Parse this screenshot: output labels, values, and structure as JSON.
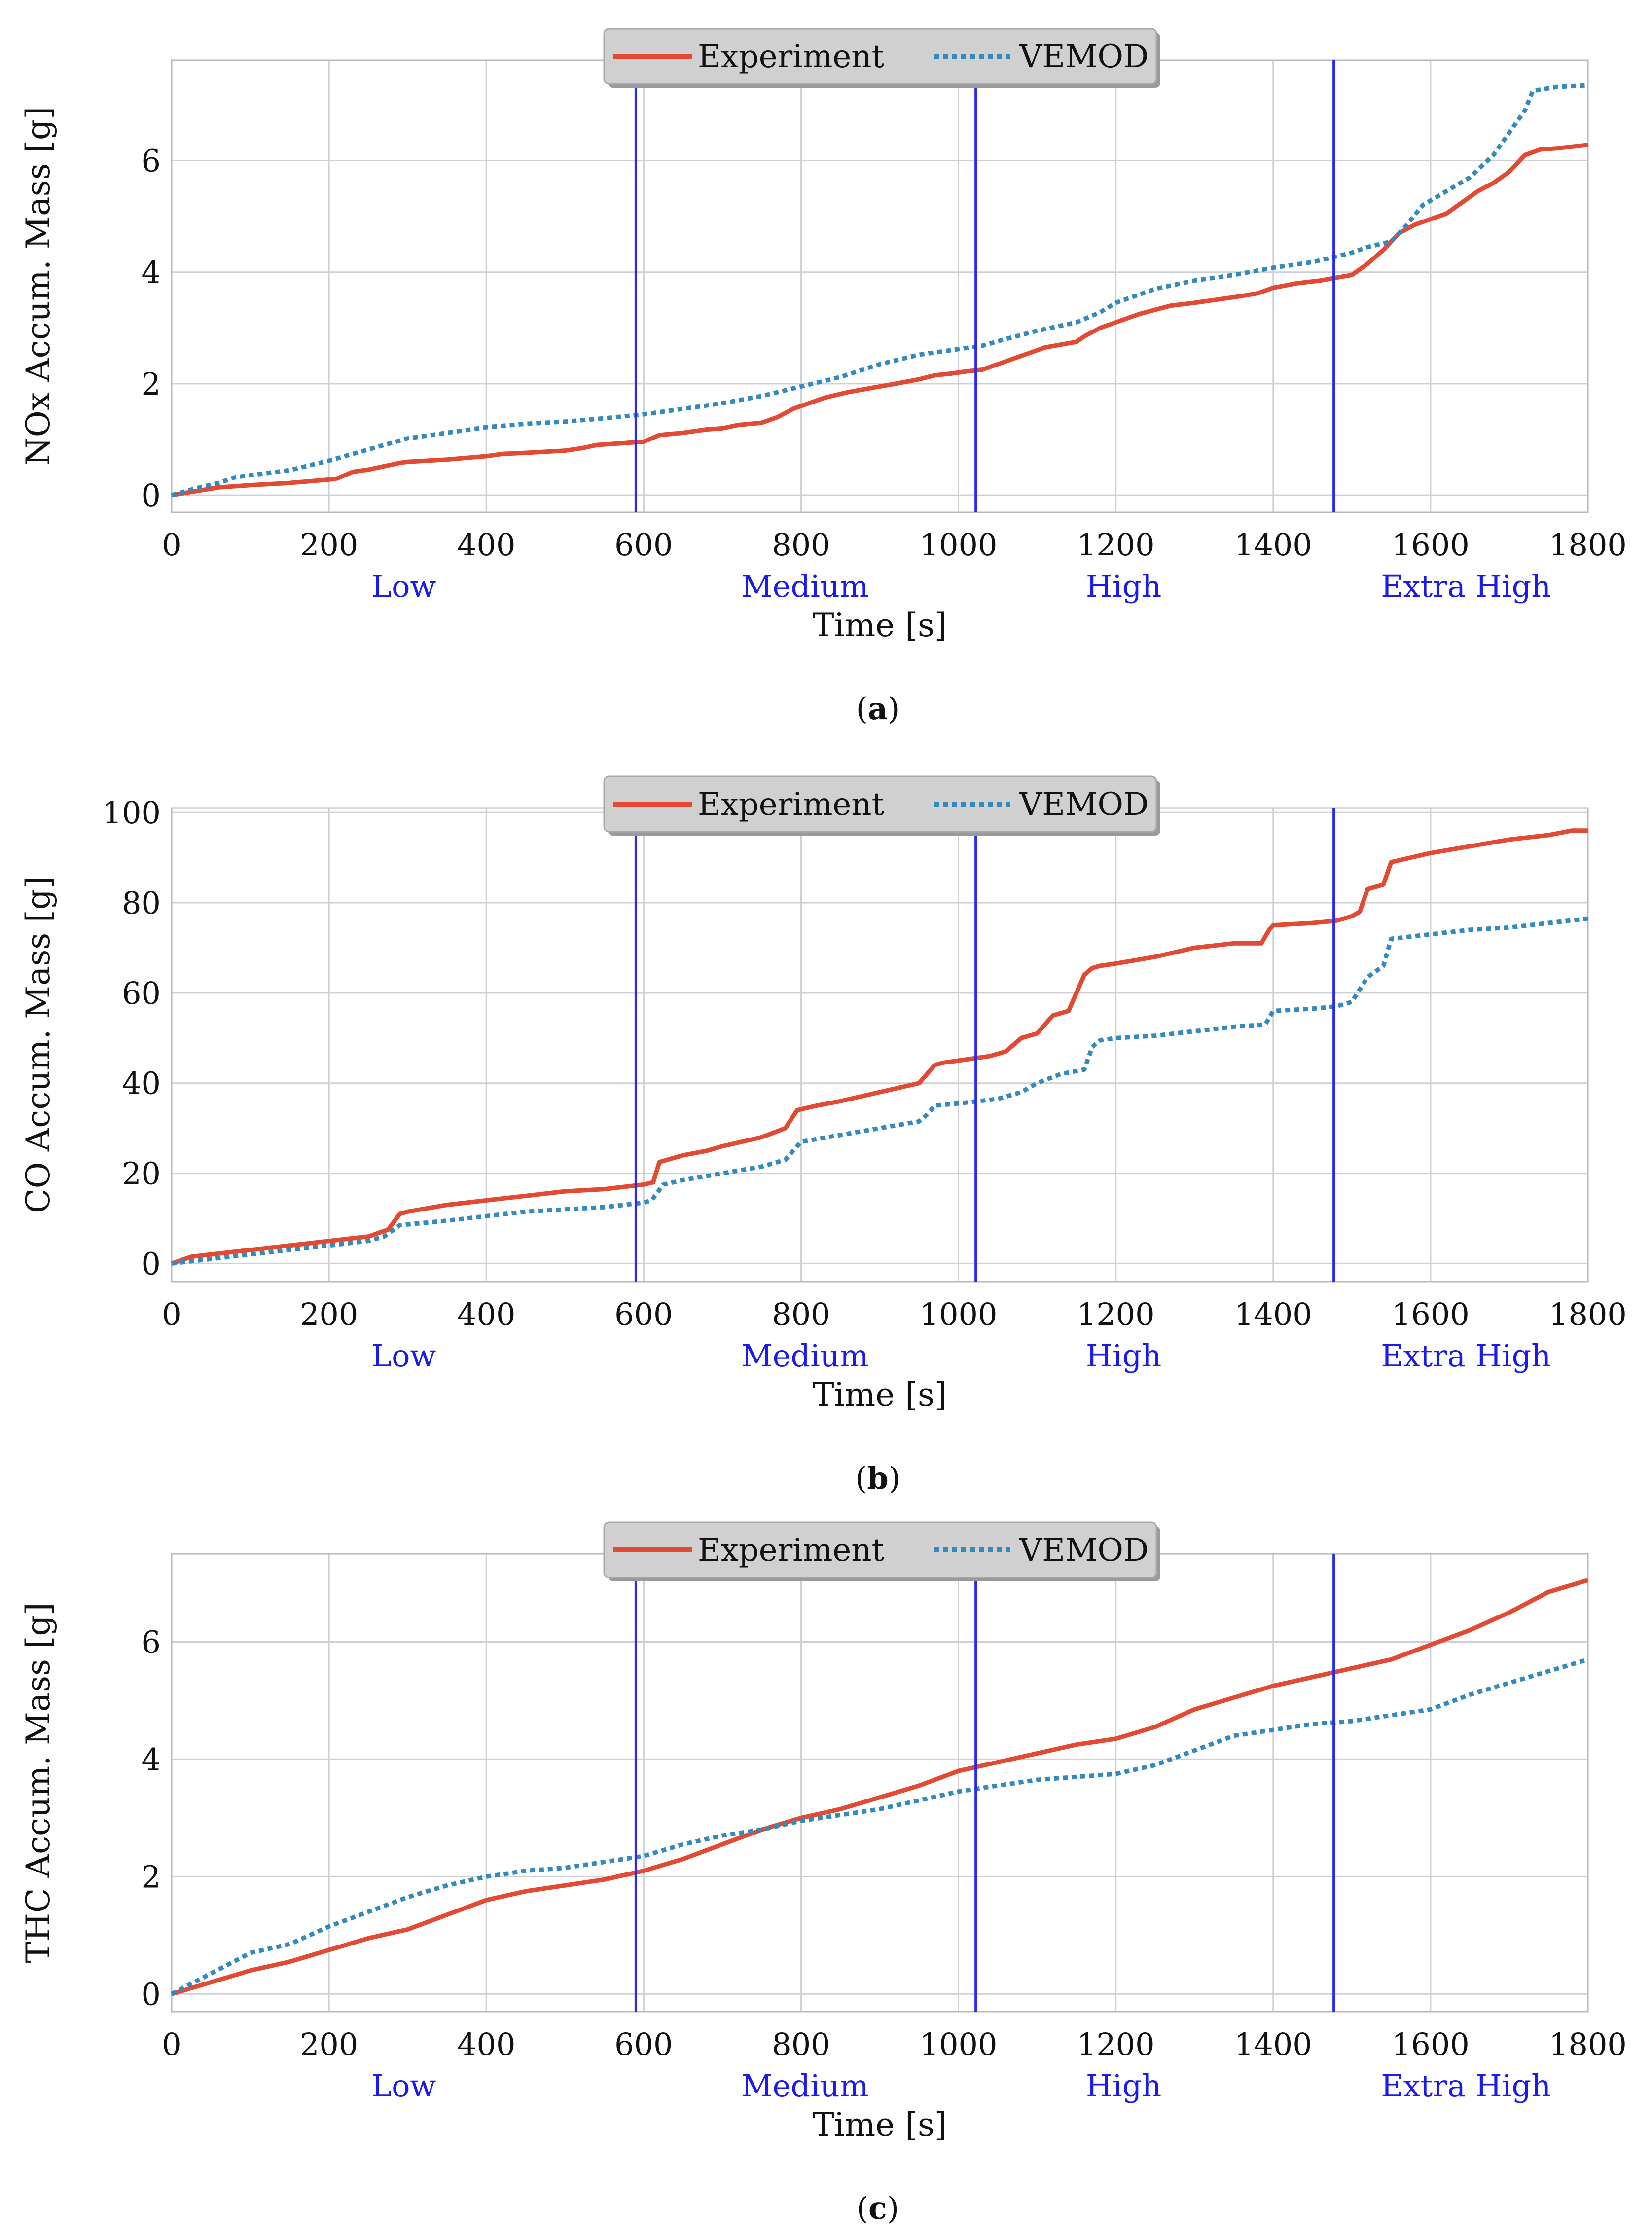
{
  "colors": {
    "experiment": "#e24a33",
    "vemod": "#348abd",
    "phase_line": "#2a2aee",
    "phase_text": "#1a1aee",
    "grid": "#cfcfd6",
    "axes": "#b8b8c0",
    "legend_bg": "#d0d0d0"
  },
  "phases": {
    "labels": [
      "Low",
      "Medium",
      "High",
      "Extra High"
    ],
    "label_x": [
      295,
      805,
      1210,
      1645
    ],
    "boundaries": [
      590,
      1022,
      1477
    ]
  },
  "chart_data": [
    {
      "type": "line",
      "caption": {
        "open": "(",
        "letter": "a",
        "close": ")"
      },
      "xlabel": "Time [s]",
      "ylabel": "NOx Accum. Mass [g]",
      "xlim": [
        0,
        1800
      ],
      "ylim": [
        -0.3,
        7.8
      ],
      "xticks": [
        0,
        200,
        400,
        600,
        800,
        1000,
        1200,
        1400,
        1600,
        1800
      ],
      "yticks": [
        0,
        2,
        4,
        6
      ],
      "legend": [
        "Experiment",
        "VEMOD"
      ],
      "series": [
        {
          "name": "Experiment",
          "x": [
            0,
            30,
            60,
            100,
            150,
            200,
            210,
            230,
            250,
            270,
            290,
            300,
            350,
            400,
            420,
            450,
            500,
            520,
            540,
            560,
            580,
            600,
            610,
            620,
            650,
            680,
            700,
            720,
            750,
            770,
            790,
            810,
            830,
            860,
            880,
            900,
            920,
            950,
            970,
            990,
            1010,
            1030,
            1050,
            1070,
            1090,
            1110,
            1130,
            1150,
            1160,
            1180,
            1200,
            1230,
            1270,
            1300,
            1350,
            1380,
            1400,
            1430,
            1460,
            1480,
            1500,
            1510,
            1520,
            1540,
            1560,
            1580,
            1600,
            1620,
            1640,
            1660,
            1680,
            1700,
            1720,
            1740,
            1760,
            1800
          ],
          "values": [
            0,
            0.07,
            0.14,
            0.18,
            0.22,
            0.28,
            0.3,
            0.42,
            0.46,
            0.52,
            0.58,
            0.6,
            0.64,
            0.7,
            0.74,
            0.76,
            0.8,
            0.84,
            0.9,
            0.92,
            0.94,
            0.96,
            1.02,
            1.08,
            1.12,
            1.18,
            1.2,
            1.26,
            1.3,
            1.4,
            1.55,
            1.65,
            1.75,
            1.85,
            1.9,
            1.95,
            2.0,
            2.08,
            2.15,
            2.18,
            2.22,
            2.25,
            2.35,
            2.45,
            2.55,
            2.65,
            2.7,
            2.75,
            2.85,
            3.0,
            3.1,
            3.25,
            3.4,
            3.45,
            3.55,
            3.62,
            3.72,
            3.8,
            3.85,
            3.9,
            3.95,
            4.05,
            4.15,
            4.4,
            4.7,
            4.85,
            4.95,
            5.05,
            5.25,
            5.45,
            5.6,
            5.8,
            6.1,
            6.2,
            6.22,
            6.28
          ]
        },
        {
          "name": "VEMOD",
          "x": [
            0,
            30,
            60,
            80,
            100,
            150,
            200,
            250,
            300,
            350,
            400,
            450,
            500,
            550,
            600,
            650,
            700,
            750,
            800,
            850,
            900,
            950,
            1000,
            1030,
            1060,
            1100,
            1150,
            1180,
            1200,
            1250,
            1300,
            1350,
            1400,
            1450,
            1480,
            1500,
            1520,
            1550,
            1570,
            1590,
            1620,
            1650,
            1680,
            1700,
            1720,
            1730,
            1760,
            1800
          ],
          "values": [
            0,
            0.12,
            0.22,
            0.32,
            0.36,
            0.45,
            0.62,
            0.82,
            1.02,
            1.12,
            1.22,
            1.28,
            1.32,
            1.38,
            1.45,
            1.55,
            1.65,
            1.78,
            1.95,
            2.12,
            2.35,
            2.52,
            2.62,
            2.68,
            2.8,
            2.95,
            3.1,
            3.28,
            3.45,
            3.7,
            3.85,
            3.95,
            4.08,
            4.18,
            4.28,
            4.35,
            4.45,
            4.55,
            4.85,
            5.2,
            5.45,
            5.7,
            6.1,
            6.5,
            6.9,
            7.25,
            7.32,
            7.35
          ]
        }
      ]
    },
    {
      "type": "line",
      "caption": {
        "open": "(",
        "letter": "b",
        "close": ")"
      },
      "xlabel": "Time [s]",
      "ylabel": "CO Accum. Mass [g]",
      "xlim": [
        0,
        1800
      ],
      "ylim": [
        -4,
        101
      ],
      "xticks": [
        0,
        200,
        400,
        600,
        800,
        1000,
        1200,
        1400,
        1600,
        1800
      ],
      "yticks": [
        0,
        20,
        40,
        60,
        80,
        100
      ],
      "legend": [
        "Experiment",
        "VEMOD"
      ],
      "series": [
        {
          "name": "Experiment",
          "x": [
            0,
            25,
            50,
            100,
            150,
            200,
            250,
            275,
            290,
            300,
            350,
            400,
            450,
            500,
            550,
            600,
            612,
            620,
            650,
            680,
            700,
            750,
            780,
            795,
            820,
            850,
            900,
            950,
            970,
            980,
            1000,
            1020,
            1040,
            1060,
            1080,
            1100,
            1120,
            1140,
            1160,
            1170,
            1180,
            1200,
            1250,
            1300,
            1350,
            1385,
            1395,
            1400,
            1450,
            1480,
            1500,
            1510,
            1520,
            1540,
            1550,
            1600,
            1650,
            1700,
            1750,
            1780,
            1800
          ],
          "values": [
            0,
            1.5,
            2,
            3,
            4,
            5,
            6,
            7.5,
            11,
            11.5,
            13,
            14,
            15,
            16,
            16.5,
            17.5,
            18,
            22.5,
            24,
            25,
            26,
            28,
            30,
            34,
            35,
            36,
            38,
            40,
            44,
            44.5,
            45,
            45.5,
            46,
            47,
            50,
            51,
            55,
            56,
            64,
            65.5,
            66,
            66.5,
            68,
            70,
            71,
            71,
            74,
            75,
            75.5,
            76,
            77,
            78,
            83,
            84,
            89,
            91,
            92.5,
            94,
            95,
            96,
            96
          ]
        },
        {
          "name": "VEMOD",
          "x": [
            0,
            50,
            100,
            150,
            200,
            250,
            270,
            290,
            350,
            400,
            450,
            500,
            550,
            600,
            610,
            625,
            650,
            700,
            750,
            780,
            800,
            850,
            900,
            950,
            960,
            970,
            1000,
            1050,
            1080,
            1100,
            1130,
            1160,
            1170,
            1180,
            1200,
            1250,
            1300,
            1350,
            1390,
            1400,
            1450,
            1480,
            1500,
            1520,
            1540,
            1550,
            1600,
            1650,
            1700,
            1750,
            1800
          ],
          "values": [
            0,
            1,
            2,
            3,
            4,
            5,
            6,
            8.5,
            9.5,
            10.5,
            11.5,
            12,
            12.5,
            13.5,
            14,
            17.5,
            18.5,
            20,
            21.5,
            23,
            27,
            28.5,
            30,
            31.5,
            33,
            35,
            35.5,
            36.5,
            38,
            40,
            42,
            43,
            48,
            49.5,
            50,
            50.5,
            51.5,
            52.5,
            53,
            56,
            56.5,
            57,
            58,
            63.5,
            66,
            72,
            73,
            74,
            74.5,
            75.5,
            76.5
          ]
        }
      ]
    },
    {
      "type": "line",
      "caption": {
        "open": "(",
        "letter": "c",
        "close": ")"
      },
      "xlabel": "Time [s]",
      "ylabel": "THC Accum. Mass [g]",
      "xlim": [
        0,
        1800
      ],
      "ylim": [
        -0.3,
        7.5
      ],
      "xticks": [
        0,
        200,
        400,
        600,
        800,
        1000,
        1200,
        1400,
        1600,
        1800
      ],
      "yticks": [
        0,
        2,
        4,
        6
      ],
      "legend": [
        "Experiment",
        "VEMOD"
      ],
      "series": [
        {
          "name": "Experiment",
          "x": [
            0,
            50,
            100,
            150,
            200,
            250,
            300,
            350,
            400,
            450,
            500,
            550,
            600,
            650,
            700,
            750,
            800,
            850,
            900,
            950,
            1000,
            1050,
            1100,
            1150,
            1200,
            1250,
            1300,
            1350,
            1400,
            1450,
            1500,
            1550,
            1600,
            1650,
            1700,
            1750,
            1800
          ],
          "values": [
            0,
            0.2,
            0.4,
            0.55,
            0.75,
            0.95,
            1.1,
            1.35,
            1.6,
            1.75,
            1.85,
            1.95,
            2.1,
            2.3,
            2.55,
            2.8,
            3.0,
            3.15,
            3.35,
            3.55,
            3.8,
            3.95,
            4.1,
            4.25,
            4.35,
            4.55,
            4.85,
            5.05,
            5.25,
            5.4,
            5.55,
            5.7,
            5.95,
            6.2,
            6.5,
            6.85,
            7.05
          ]
        },
        {
          "name": "VEMOD",
          "x": [
            0,
            50,
            100,
            150,
            200,
            250,
            300,
            350,
            400,
            450,
            500,
            550,
            600,
            650,
            700,
            750,
            800,
            850,
            900,
            950,
            1000,
            1050,
            1100,
            1150,
            1200,
            1250,
            1300,
            1350,
            1400,
            1450,
            1500,
            1550,
            1600,
            1650,
            1700,
            1750,
            1800
          ],
          "values": [
            0,
            0.35,
            0.7,
            0.85,
            1.15,
            1.4,
            1.65,
            1.85,
            2.0,
            2.1,
            2.15,
            2.25,
            2.35,
            2.55,
            2.7,
            2.8,
            2.95,
            3.05,
            3.15,
            3.3,
            3.45,
            3.55,
            3.65,
            3.7,
            3.75,
            3.9,
            4.15,
            4.4,
            4.5,
            4.6,
            4.65,
            4.75,
            4.85,
            5.1,
            5.3,
            5.5,
            5.7
          ]
        }
      ]
    }
  ]
}
